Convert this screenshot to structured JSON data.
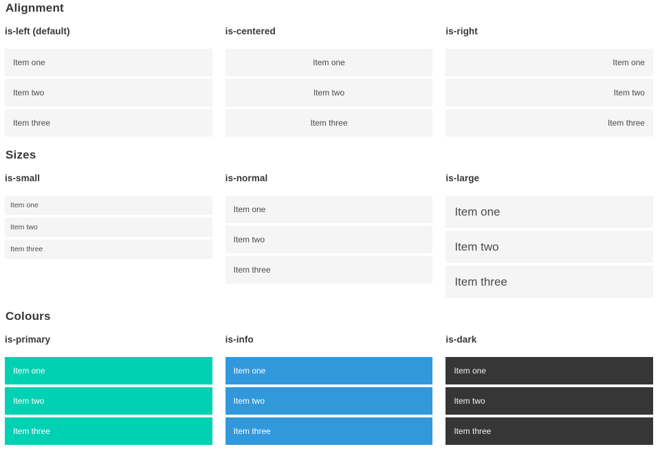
{
  "sections": [
    {
      "title": "Alignment",
      "columns": [
        {
          "heading": "is-left (default)",
          "items": [
            "Item one",
            "Item two",
            "Item three"
          ]
        },
        {
          "heading": "is-centered",
          "items": [
            "Item one",
            "Item two",
            "Item three"
          ]
        },
        {
          "heading": "is-right",
          "items": [
            "Item one",
            "Item two",
            "Item three"
          ]
        }
      ]
    },
    {
      "title": "Sizes",
      "columns": [
        {
          "heading": "is-small",
          "items": [
            "Item one",
            "Item two",
            "Item three"
          ]
        },
        {
          "heading": "is-normal",
          "items": [
            "Item one",
            "Item two",
            "Item three"
          ]
        },
        {
          "heading": "is-large",
          "items": [
            "Item one",
            "Item two",
            "Item three"
          ]
        }
      ]
    },
    {
      "title": "Colours",
      "columns": [
        {
          "heading": "is-primary",
          "items": [
            "Item one",
            "Item two",
            "Item three"
          ]
        },
        {
          "heading": "is-info",
          "items": [
            "Item one",
            "Item two",
            "Item three"
          ]
        },
        {
          "heading": "is-dark",
          "items": [
            "Item one",
            "Item two",
            "Item three"
          ]
        }
      ]
    }
  ],
  "colors": {
    "primary": "#00d1b2",
    "info": "#3298dc",
    "dark": "#363636",
    "item_background": "#f5f5f5",
    "item_text": "#4a4a4a",
    "heading_text": "#363636",
    "page_background": "#ffffff"
  }
}
